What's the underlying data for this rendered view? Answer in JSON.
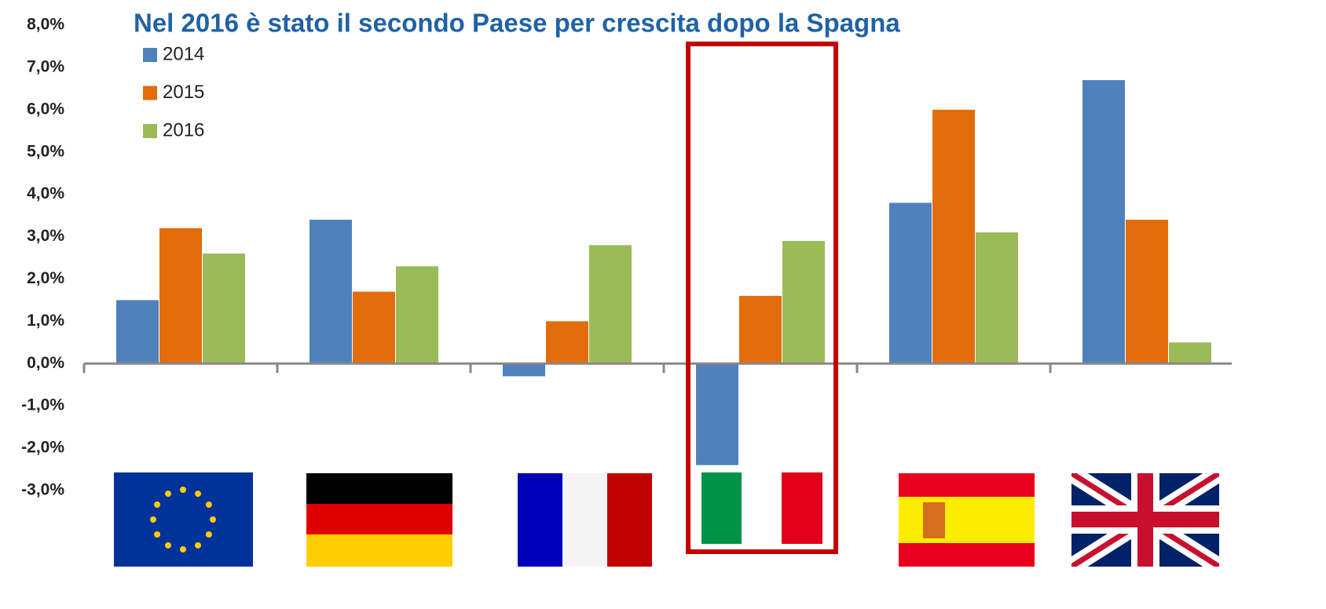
{
  "chart_data": {
    "type": "bar",
    "title": "Nel 2016 è stato il secondo Paese per crescita dopo la Spagna",
    "categories": [
      null,
      null,
      null,
      null,
      null,
      null
    ],
    "series": [
      {
        "name": "2014",
        "color": "#4f81bd",
        "values": [
          1.5,
          3.4,
          -0.3,
          -2.4,
          3.8,
          6.7
        ]
      },
      {
        "name": "2015",
        "color": "#e36c0a",
        "values": [
          3.2,
          1.7,
          1.0,
          1.6,
          6.0,
          3.4
        ]
      },
      {
        "name": "2016",
        "color": "#9bbb59",
        "values": [
          2.6,
          2.3,
          2.8,
          2.9,
          3.1,
          0.5
        ]
      }
    ],
    "ylim": [
      -3,
      8
    ],
    "yticks": [
      {
        "value": 8,
        "label": "8,0%"
      },
      {
        "value": 7,
        "label": "7,0%"
      },
      {
        "value": 6,
        "label": "6,0%"
      },
      {
        "value": 5,
        "label": "5,0%"
      },
      {
        "value": 4,
        "label": "4,0%"
      },
      {
        "value": 3,
        "label": "3,0%"
      },
      {
        "value": 2,
        "label": "2,0%"
      },
      {
        "value": 1,
        "label": "1,0%"
      },
      {
        "value": 0,
        "label": "0,0%"
      },
      {
        "value": -1,
        "label": "-1,0%"
      },
      {
        "value": -2,
        "label": "-2,0%"
      },
      {
        "value": -3,
        "label": "-3,0%"
      }
    ],
    "legend": "top-left"
  }
}
